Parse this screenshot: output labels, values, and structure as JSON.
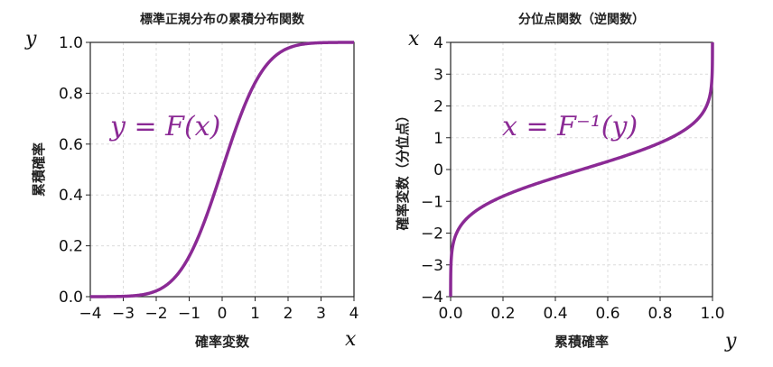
{
  "chart_data": [
    {
      "type": "line",
      "title": "標準正規分布の累積分布関数",
      "xlabel": "確率変数",
      "ylabel": "累積確率",
      "xlim": [
        -4,
        4
      ],
      "ylim": [
        0,
        1
      ],
      "xticks": [
        "−4",
        "−3",
        "−2",
        "−1",
        "0",
        "1",
        "2",
        "3",
        "4"
      ],
      "yticks": [
        "0.0",
        "0.2",
        "0.4",
        "0.6",
        "0.8",
        "1.0"
      ],
      "grid": true,
      "annotation": "y = F(x)",
      "corner_x": "x",
      "corner_y": "y",
      "color": "#8b2a95",
      "series": [
        {
          "x": [
            -4,
            -3.5,
            -3,
            -2.5,
            -2,
            -1.5,
            -1,
            -0.5,
            0,
            0.5,
            1,
            1.5,
            2,
            2.5,
            3,
            3.5,
            4
          ],
          "y": [
            3e-05,
            0.0002,
            0.0013,
            0.0062,
            0.0228,
            0.0668,
            0.1587,
            0.3085,
            0.5,
            0.6915,
            0.8413,
            0.9332,
            0.9772,
            0.9938,
            0.9987,
            0.9998,
            0.99997
          ]
        }
      ]
    },
    {
      "type": "line",
      "title": "分位点関数（逆関数）",
      "xlabel": "累積確率",
      "ylabel": "確率変数（分位点）",
      "xlim": [
        0,
        1
      ],
      "ylim": [
        -4,
        4
      ],
      "xticks": [
        "0.0",
        "0.2",
        "0.4",
        "0.6",
        "0.8",
        "1.0"
      ],
      "yticks": [
        "−4",
        "−3",
        "−2",
        "−1",
        "0",
        "1",
        "2",
        "3",
        "4"
      ],
      "grid": true,
      "annotation": "x = F⁻¹(y)",
      "corner_x": "y",
      "corner_y": "x",
      "color": "#8b2a95",
      "series": [
        {
          "x": [
            3e-05,
            0.0002,
            0.0013,
            0.0062,
            0.0228,
            0.0668,
            0.1587,
            0.3085,
            0.5,
            0.6915,
            0.8413,
            0.9332,
            0.9772,
            0.9938,
            0.9987,
            0.9998,
            0.99997
          ],
          "y": [
            -4,
            -3.5,
            -3,
            -2.5,
            -2,
            -1.5,
            -1,
            -0.5,
            0,
            0.5,
            1,
            1.5,
            2,
            2.5,
            3,
            3.5,
            4
          ]
        }
      ]
    }
  ]
}
